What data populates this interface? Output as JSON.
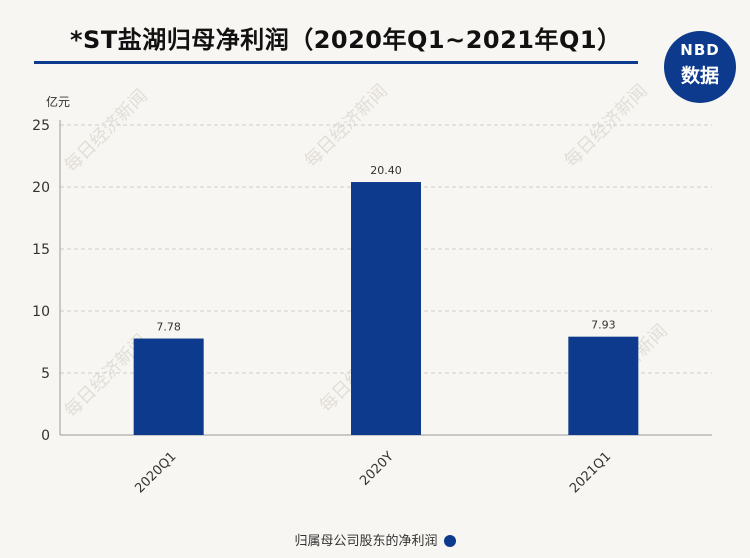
{
  "title": "*ST盐湖归母净利润（2020年Q1~2021年Q1）",
  "logo": {
    "line1": "NBD",
    "line2": "数据"
  },
  "watermark": "每日经济新闻",
  "colors": {
    "bar": "#0d3a8c",
    "accent": "#0d3a8c"
  },
  "chart_data": {
    "type": "bar",
    "title": "*ST盐湖归母净利润（2020年Q1~2021年Q1）",
    "ylabel": "亿元",
    "xlabel": "",
    "categories": [
      "2020Q1",
      "2020Y",
      "2021Q1"
    ],
    "series": [
      {
        "name": "归属母公司股东的净利润",
        "values": [
          7.78,
          20.4,
          7.93
        ],
        "labels": [
          "7.78",
          "20.40",
          "7.93"
        ]
      }
    ],
    "ylim": [
      0,
      25
    ],
    "yticks": [
      0,
      5,
      10,
      15,
      20,
      25
    ],
    "grid": true,
    "legend": "bottom-center"
  }
}
